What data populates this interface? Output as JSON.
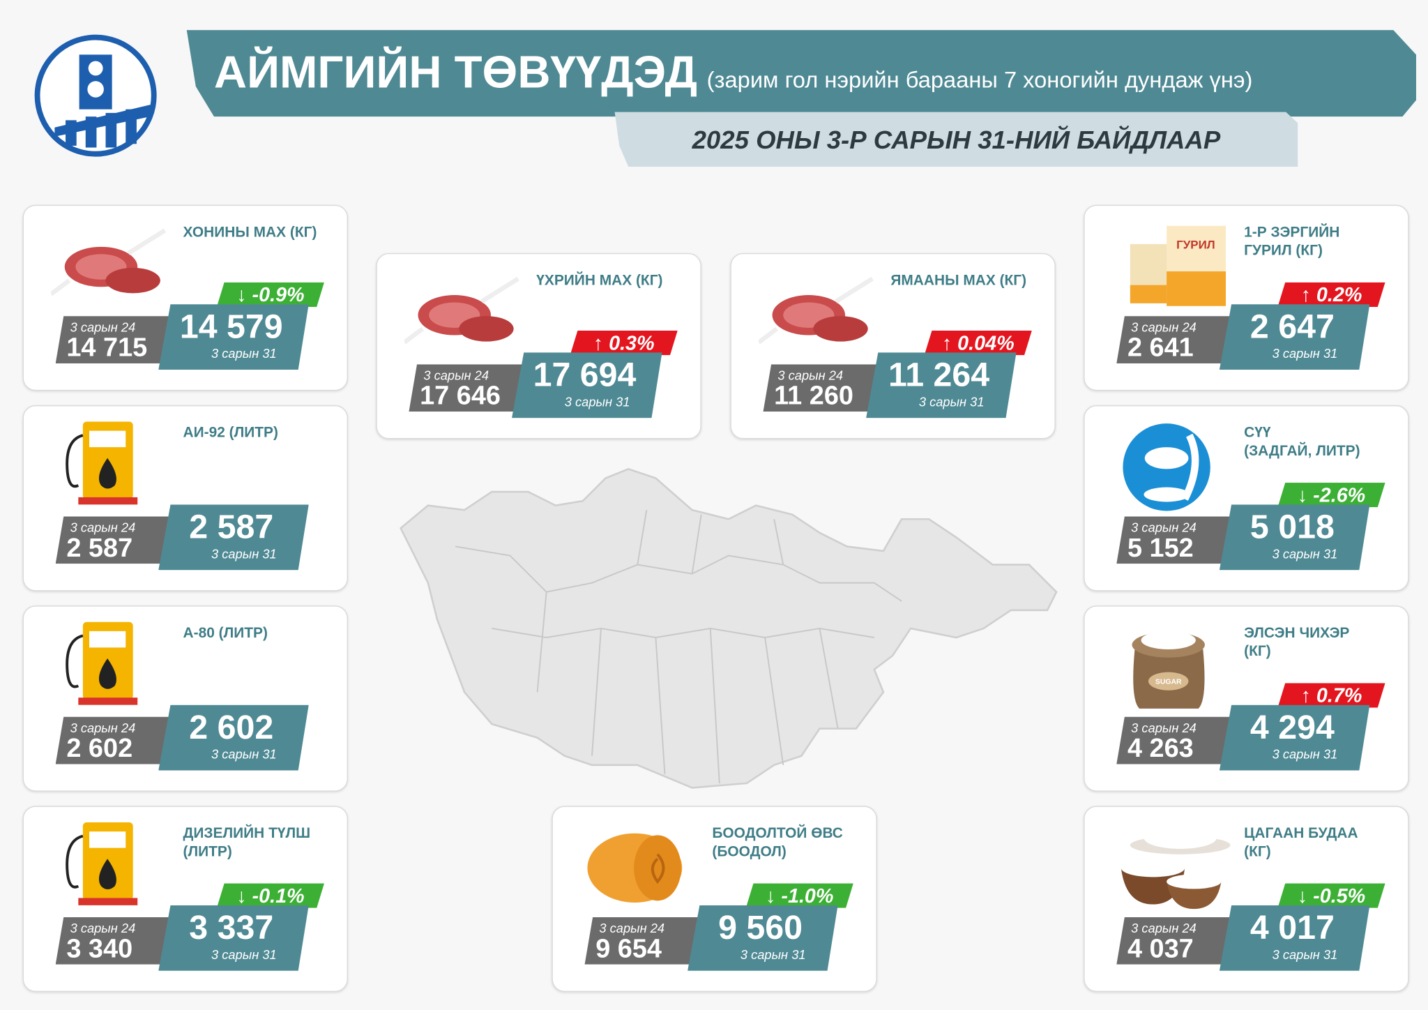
{
  "header": {
    "title": "АЙМГИЙН ТӨВҮҮДЭД",
    "subtitle": "(зарим гол нэрийн барааны 7 хоногийн дундаж үнэ)",
    "date": "2025 ОНЫ 3-Р САРЫН 31-НИЙ БАЙДЛААР"
  },
  "items": [
    {
      "title": [
        "ХОНИНЫ МАХ (КГ)"
      ],
      "prev_label": "3 сарын 24",
      "prev_value": "14 715",
      "current_value": "14 579",
      "current_label": "3 сарын 31",
      "change": "↓ -0.9%",
      "badge_color": "#3cb034"
    },
    {
      "title": [
        "ҮХРИЙН МАХ (КГ)"
      ],
      "prev_label": "3 сарын 24",
      "prev_value": "17 646",
      "current_value": "17 694",
      "current_label": "3 сарын 31",
      "change": "↑ 0.3%",
      "badge_color": "#e3161f"
    },
    {
      "title": [
        "ЯМААНЫ МАХ (КГ)"
      ],
      "prev_label": "3 сарын 24",
      "prev_value": "11 260",
      "current_value": "11 264",
      "current_label": "3 сарын 31",
      "change": "↑ 0.04%",
      "badge_color": "#e3161f"
    },
    {
      "title": [
        "1-Р ЗЭРГИЙН",
        "ГУРИЛ (КГ)"
      ],
      "icon_text": "ГУРИЛ",
      "prev_label": "3 сарын 24",
      "prev_value": "2 641",
      "current_value": "2 647",
      "current_label": "3 сарын 31",
      "change": "↑ 0.2%",
      "badge_color": "#e3161f"
    },
    {
      "title": [
        "АИ-92 (ЛИТР)"
      ],
      "prev_label": "3 сарын 24",
      "prev_value": "2 587",
      "current_value": "2 587",
      "current_label": "3 сарын 31"
    },
    {
      "title": [
        "СҮҮ",
        "(ЗАДГАЙ, ЛИТР)"
      ],
      "prev_label": "3 сарын 24",
      "prev_value": "5 152",
      "current_value": "5 018",
      "current_label": "3 сарын 31",
      "change": "↓ -2.6%",
      "badge_color": "#3cb034"
    },
    {
      "title": [
        "А-80 (ЛИТР)"
      ],
      "prev_label": "3 сарын 24",
      "prev_value": "2 602",
      "current_value": "2 602",
      "current_label": "3 сарын 31"
    },
    {
      "title": [
        "ЭЛСЭН ЧИХЭР",
        "(КГ)"
      ],
      "icon_text": "SUGAR",
      "prev_label": "3 сарын 24",
      "prev_value": "4 263",
      "current_value": "4 294",
      "current_label": "3 сарын 31",
      "change": "↑ 0.7%",
      "badge_color": "#e3161f"
    },
    {
      "title": [
        "ДИЗЕЛИЙН ТҮЛШ",
        "(ЛИТР)"
      ],
      "prev_label": "3 сарын 24",
      "prev_value": "3 340",
      "current_value": "3 337",
      "current_label": "3 сарын 31",
      "change": "↓ -0.1%",
      "badge_color": "#3cb034"
    },
    {
      "title": [
        "БООДОЛТОЙ ӨВС",
        "(БООДОЛ)"
      ],
      "prev_label": "3 сарын 24",
      "prev_value": "9 654",
      "current_value": "9 560",
      "current_label": "3 сарын 31",
      "change": "↓ -1.0%",
      "badge_color": "#3cb034"
    },
    {
      "title": [
        "ЦАГААН БУДАА",
        "(КГ)"
      ],
      "prev_label": "3 сарын 24",
      "prev_value": "4 037",
      "current_value": "4 017",
      "current_label": "3 сарын 31",
      "change": "↓ -0.5%",
      "badge_color": "#3cb034"
    }
  ]
}
